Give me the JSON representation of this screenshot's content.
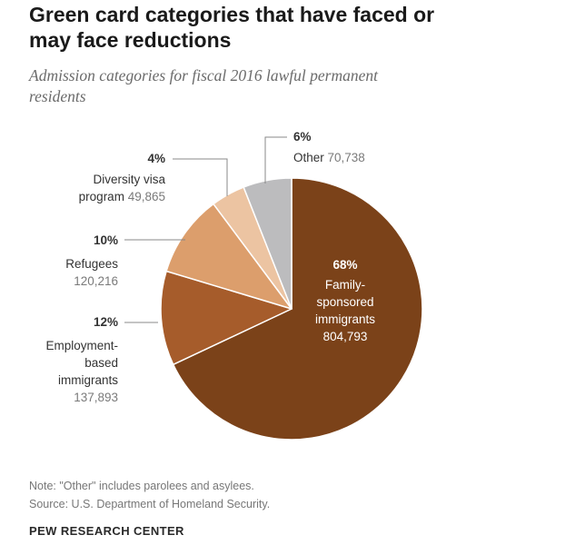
{
  "title": "Green card categories that have faced or may face reductions",
  "subtitle": "Admission categories for fiscal 2016 lawful permanent residents",
  "note": "Note: \"Other\" includes parolees and asylees.",
  "source": "Source: U.S. Department of Homeland Security.",
  "brand": "PEW RESEARCH CENTER",
  "colors": {
    "family": "#7b4219",
    "employment": "#a65c2b",
    "refugees": "#dc9e6c",
    "diversity": "#ecc4a2",
    "other": "#bcbcbe",
    "label_dark": "#333333",
    "label_number": "#7a7a7a",
    "leader": "#888888"
  },
  "chart_data": {
    "type": "pie",
    "title": "Green card categories that have faced or may face reductions",
    "subtitle": "Admission categories for fiscal 2016 lawful permanent residents",
    "slices": [
      {
        "key": "family",
        "percent_label": "68%",
        "name_lines": [
          "Family-",
          "sponsored",
          "immigrants"
        ],
        "value_label": "804,793",
        "value": 804793,
        "color": "#7b4219"
      },
      {
        "key": "employment",
        "percent_label": "12%",
        "name_lines": [
          "Employment-",
          "based",
          "immigrants"
        ],
        "value_label": "137,893",
        "value": 137893,
        "color": "#a65c2b"
      },
      {
        "key": "refugees",
        "percent_label": "10%",
        "name_lines": [
          "Refugees"
        ],
        "value_label": "120,216",
        "value": 120216,
        "color": "#dc9e6c"
      },
      {
        "key": "diversity",
        "percent_label": "4%",
        "name_lines": [
          "Diversity visa",
          "program"
        ],
        "value_label": "49,865",
        "value": 49865,
        "color": "#ecc4a2"
      },
      {
        "key": "other",
        "percent_label": "6%",
        "name_lines": [
          "Other"
        ],
        "value_label": "70,738",
        "value": 70738,
        "color": "#bcbcbe"
      }
    ]
  }
}
